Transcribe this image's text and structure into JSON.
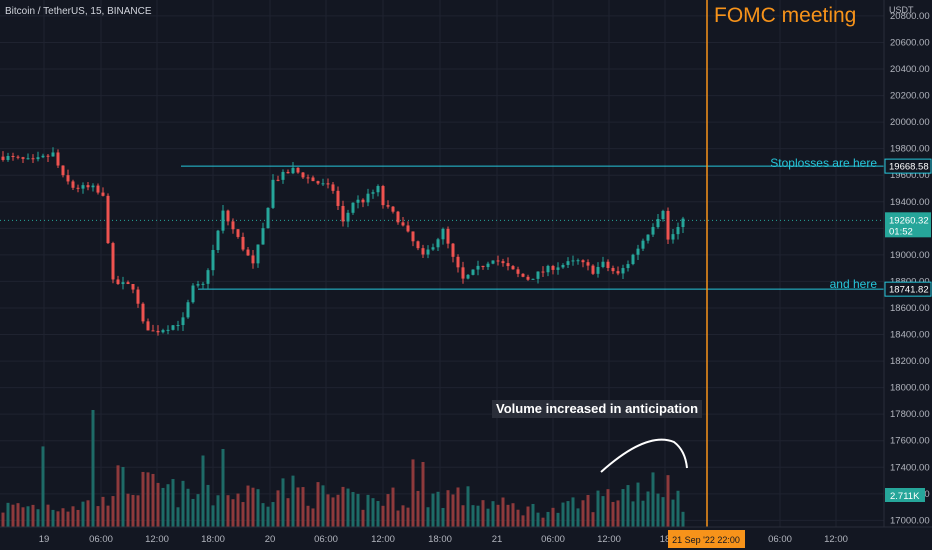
{
  "header": {
    "symbol_label": "Bitcoin / TetherUS, 15, BINANCE",
    "event_label": "FOMC meeting",
    "currency_label": "USDT"
  },
  "annotations": {
    "stoplosses": "Stoplosses are here",
    "and_here": "and here",
    "volume_note": "Volume increased in anticipation"
  },
  "colors": {
    "background": "#131722",
    "grid": "#1f2330",
    "up": "#26a69a",
    "down": "#ef5350",
    "up_volume": "#1e6b67",
    "down_volume": "#8e3a3c",
    "level_line": "#26c6da",
    "event_line": "#f7931a",
    "axis_text": "#b2b5be"
  },
  "chart_data": {
    "type": "candlestick",
    "symbol": "BTCUSDT",
    "interval": "15",
    "exchange": "BINANCE",
    "y_ticks": [
      17000,
      17200,
      17400,
      17600,
      17800,
      18000,
      18200,
      18400,
      18600,
      18800,
      19000,
      19200,
      19400,
      19600,
      19800,
      20000,
      20200,
      20400,
      20600,
      20800
    ],
    "y_tick_labels": [
      "17000.00",
      "17200.00",
      "17400.00",
      "17600.00",
      "17800.00",
      "18000.00",
      "18200.00",
      "18400.00",
      "18600.00",
      "18800.00",
      "19000.00",
      "19200.00",
      "19400.00",
      "19600.00",
      "19800.00",
      "20000.00",
      "20200.00",
      "20400.00",
      "20600.00",
      "20800.00"
    ],
    "ylim": [
      16950,
      20920
    ],
    "x_ticks": [
      "19",
      "06:00",
      "12:00",
      "18:00",
      "20",
      "06:00",
      "12:00",
      "18:00",
      "21",
      "06:00",
      "12:00",
      "18",
      "06:00",
      "12:00"
    ],
    "x_current_label": "21 Sep '22   22:00",
    "levels": [
      {
        "label": "19668.58",
        "value": 19668.58
      },
      {
        "label": "18741.82",
        "value": 18741.82
      }
    ],
    "current_price": {
      "label": "19260.32",
      "value": 19260.32,
      "countdown": "01:52"
    },
    "volume_badge": "2.711K",
    "event": {
      "label": "FOMC meeting",
      "time": "21 Sep '22 22:00"
    },
    "price_anchors": [
      [
        0,
        19740
      ],
      [
        6,
        19700
      ],
      [
        10,
        19760
      ],
      [
        12,
        19580
      ],
      [
        14,
        19510
      ],
      [
        18,
        19500
      ],
      [
        20,
        19430
      ],
      [
        22,
        18790
      ],
      [
        26,
        18760
      ],
      [
        28,
        18480
      ],
      [
        30,
        18420
      ],
      [
        34,
        18470
      ],
      [
        36,
        18510
      ],
      [
        38,
        18750
      ],
      [
        40,
        18770
      ],
      [
        42,
        19030
      ],
      [
        44,
        19320
      ],
      [
        46,
        19190
      ],
      [
        50,
        18920
      ],
      [
        52,
        19190
      ],
      [
        54,
        19560
      ],
      [
        56,
        19600
      ],
      [
        58,
        19640
      ],
      [
        62,
        19560
      ],
      [
        66,
        19490
      ],
      [
        68,
        19240
      ],
      [
        70,
        19400
      ],
      [
        72,
        19410
      ],
      [
        75,
        19500
      ],
      [
        76,
        19380
      ],
      [
        79,
        19270
      ],
      [
        84,
        18980
      ],
      [
        88,
        19180
      ],
      [
        90,
        18970
      ],
      [
        92,
        18810
      ],
      [
        98,
        18980
      ],
      [
        103,
        18850
      ],
      [
        105,
        18820
      ],
      [
        110,
        18910
      ],
      [
        115,
        18950
      ],
      [
        118,
        18880
      ],
      [
        120,
        18930
      ],
      [
        123,
        18850
      ],
      [
        125,
        18940
      ],
      [
        129,
        19170
      ],
      [
        132,
        19350
      ],
      [
        133,
        19110
      ],
      [
        136,
        19250
      ]
    ],
    "volume_profile": [
      [
        0,
        0.15
      ],
      [
        20,
        0.18
      ],
      [
        22,
        0.35
      ],
      [
        30,
        0.3
      ],
      [
        40,
        0.22
      ],
      [
        50,
        0.26
      ],
      [
        56,
        0.3
      ],
      [
        70,
        0.2
      ],
      [
        90,
        0.25
      ],
      [
        100,
        0.16
      ],
      [
        110,
        0.12
      ],
      [
        118,
        0.2
      ],
      [
        126,
        0.3
      ],
      [
        134,
        0.32
      ],
      [
        136,
        0.2
      ]
    ],
    "volume_spikes": [
      [
        18,
        0.9
      ],
      [
        8,
        0.62
      ],
      [
        44,
        0.6
      ],
      [
        40,
        0.55
      ],
      [
        82,
        0.52
      ],
      [
        84,
        0.5
      ],
      [
        130,
        0.42
      ]
    ]
  }
}
